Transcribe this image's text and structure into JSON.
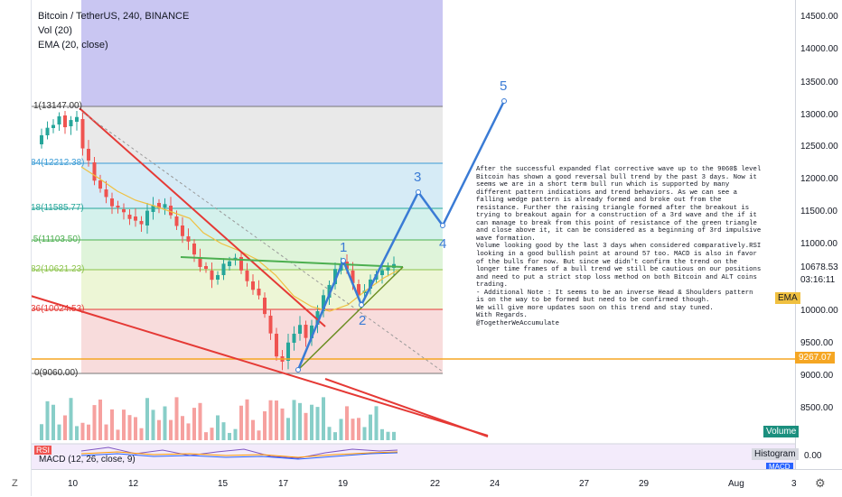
{
  "header": {
    "symbol": "Bitcoin / TetherUS, 240, BINANCE",
    "indicator_vol": "Vol (20)",
    "indicator_ema": "EMA (20, close)"
  },
  "price_axis": {
    "labels": [
      "14500.00",
      "14000.00",
      "13500.00",
      "13000.00",
      "12500.00",
      "12000.00",
      "11500.00",
      "11000.00",
      "10678.53",
      "03:16:11",
      "10000.00",
      "9500.00",
      "9267.07",
      "9000.00",
      "8500.00",
      "0.00"
    ],
    "current_price": "10678.53",
    "countdown": "03:16:11",
    "hline_price": "9267.07",
    "ema_tag": "EMA",
    "volume_tag": "Volume",
    "histogram_tag": "Histogram",
    "macd_tag": "MACD"
  },
  "time_axis": {
    "labels": [
      "10",
      "12",
      "15",
      "17",
      "19",
      "22",
      "24",
      "27",
      "29",
      "Aug",
      "3"
    ]
  },
  "fib_levels": [
    {
      "label": "1(13147.00)",
      "price": 13147.0
    },
    {
      "label": "84(12212.38)",
      "price": 12212.38
    },
    {
      "label": "18(11585.77)",
      "price": 11585.77
    },
    {
      "label": ".5(11103.50)",
      "price": 11103.5
    },
    {
      "label": "82(10621.23)",
      "price": 10621.23
    },
    {
      "label": "36(10024.53)",
      "price": 10024.53
    },
    {
      "label": "0(9060.00)",
      "price": 9060.0
    }
  ],
  "waves": [
    "1",
    "2",
    "3",
    "4",
    "5"
  ],
  "rsi_label": "RSI",
  "macd_label": "MACD (12, 26, close, 9)",
  "toolbar_icons": [
    "z-icon",
    "gear-icon"
  ],
  "note": {
    "lines": [
      "After the successful expanded flat corrective wave up to the 9060$ level",
      "Bitcoin has shown a good reversal bull trend by the past 3 days. Now it",
      "seems we are in a short term bull run which is supported by many",
      "different pattern indications and trend behaviors. As we can see a",
      "falling wedge pattern is already formed and broke out from the",
      "resistance. Further the raising triangle formed after the breakout is",
      "trying to breakout again for a construction of a 3rd wave and the if it",
      "can manage to break from this point of resistance of the green triangle",
      "and close above it, it can be considered as a beginning of 3rd impulsive",
      "wave formation.",
      "Volume looking good by the last 3 days when considered comparatively.RSI",
      "looking in a good bullish point at around 57 too. MACD is also in favor",
      "of the bulls for now. But since we didn't confirm the trend on the",
      "longer time frames of a bull trend we still be cautious on our positions",
      "and need to put a strict stop loss method on both Bitcoin and ALT coins",
      "trading.",
      "- Additional Note : It seems to be an inverse Head & Shoulders pattern",
      "is on the way to be formed but need to be confirmed though.",
      "We will give more updates soon on this trend and stay tuned.",
      "With Regards.",
      "@TogetherWeAccumulate"
    ]
  },
  "colors": {
    "fib_top": "#b7b3ee",
    "fib_band1": "#e3e3e3",
    "fib_band2": "#cfe8f5",
    "fib_band3": "#cdeee9",
    "fib_band4": "#d9f2d3",
    "fib_band5": "#eaf5cf",
    "fib_band6": "#f7d6d6",
    "candle_up": "#26a69a",
    "candle_down": "#ef5350",
    "wave_line": "#3a7bd5",
    "wedge_red": "#e53935",
    "triangle_green": "#4caf50",
    "hline_orange": "#f5a623",
    "ema_yellow": "#f0c040"
  }
}
